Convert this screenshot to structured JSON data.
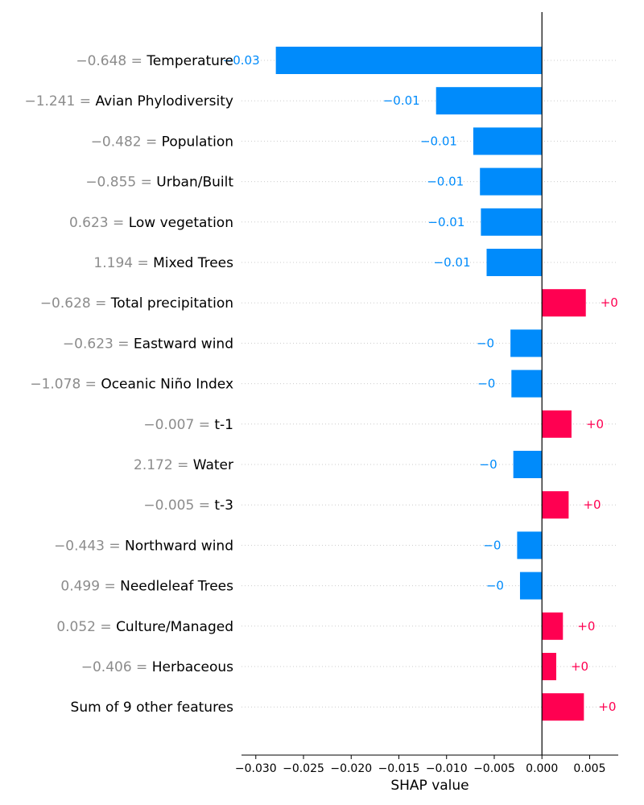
{
  "chart_data": {
    "type": "bar",
    "orientation": "horizontal",
    "xlabel": "SHAP value",
    "xlim": [
      -0.0315,
      0.008
    ],
    "xticks": [
      -0.03,
      -0.025,
      -0.02,
      -0.015,
      -0.01,
      -0.005,
      0.0,
      0.005
    ],
    "xtick_labels": [
      "−0.030",
      "−0.025",
      "−0.020",
      "−0.015",
      "−0.010",
      "−0.005",
      "0.000",
      "0.005"
    ],
    "grid": "dotted horizontal lines per row",
    "colors": {
      "negative": "#008bfb",
      "positive": "#ff0051",
      "feature_value": "#8c8c8c",
      "zero_line": "#000000"
    },
    "features": [
      {
        "value_text": "−0.648",
        "name": "Temperature",
        "shap": -0.0279,
        "label": "−0.03"
      },
      {
        "value_text": "−1.241",
        "name": "Avian Phylodiversity",
        "shap": -0.0111,
        "label": "−0.01"
      },
      {
        "value_text": "−0.482",
        "name": "Population",
        "shap": -0.0072,
        "label": "−0.01"
      },
      {
        "value_text": "−0.855",
        "name": "Urban/Built",
        "shap": -0.0065,
        "label": "−0.01"
      },
      {
        "value_text": "0.623",
        "name": "Low vegetation",
        "shap": -0.0064,
        "label": "−0.01"
      },
      {
        "value_text": "1.194",
        "name": "Mixed Trees",
        "shap": -0.0058,
        "label": "−0.01"
      },
      {
        "value_text": "−0.628",
        "name": "Total precipitation",
        "shap": 0.0046,
        "label": "+0"
      },
      {
        "value_text": "−0.623",
        "name": "Eastward wind",
        "shap": -0.0033,
        "label": "−0"
      },
      {
        "value_text": "−1.078",
        "name": "Oceanic Niño Index",
        "shap": -0.0032,
        "label": "−0"
      },
      {
        "value_text": "−0.007",
        "name": "t-1",
        "shap": 0.0031,
        "label": "+0"
      },
      {
        "value_text": "2.172",
        "name": "Water",
        "shap": -0.003,
        "label": "−0"
      },
      {
        "value_text": "−0.005",
        "name": "t-3",
        "shap": 0.0028,
        "label": "+0"
      },
      {
        "value_text": "−0.443",
        "name": "Northward wind",
        "shap": -0.0026,
        "label": "−0"
      },
      {
        "value_text": "0.499",
        "name": "Needleleaf Trees",
        "shap": -0.0023,
        "label": "−0"
      },
      {
        "value_text": "0.052",
        "name": "Culture/Managed",
        "shap": 0.0022,
        "label": "+0"
      },
      {
        "value_text": "−0.406",
        "name": "Herbaceous",
        "shap": 0.0015,
        "label": "+0"
      },
      {
        "value_text": "",
        "name": "Sum of 9 other features",
        "shap": 0.0044,
        "label": "+0"
      }
    ]
  }
}
